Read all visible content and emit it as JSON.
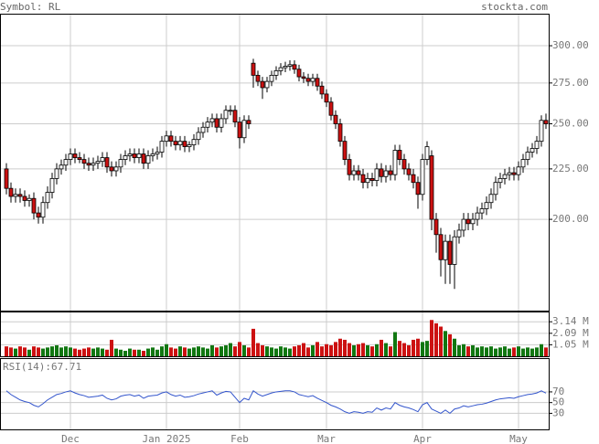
{
  "header": {
    "symbol": "Symbol: RL",
    "site": "stockta.com"
  },
  "chart_data": [
    {
      "type": "candlestick",
      "log": true,
      "grid": true,
      "up_color": "#ffffff",
      "down_color": "#cc1111",
      "categories": [
        null,
        null,
        null,
        null,
        null,
        null,
        null,
        null,
        null,
        null,
        null,
        null,
        null,
        null,
        "Dec",
        null,
        null,
        null,
        null,
        null,
        null,
        null,
        null,
        null,
        null,
        null,
        null,
        null,
        null,
        null,
        null,
        null,
        null,
        null,
        null,
        "Jan 2025",
        null,
        null,
        null,
        null,
        null,
        null,
        null,
        null,
        null,
        null,
        null,
        null,
        null,
        null,
        null,
        "Feb",
        null,
        null,
        null,
        null,
        null,
        null,
        null,
        null,
        null,
        null,
        null,
        null,
        null,
        null,
        null,
        null,
        null,
        null,
        "Mar",
        null,
        null,
        null,
        null,
        null,
        null,
        null,
        null,
        null,
        null,
        null,
        null,
        null,
        null,
        null,
        null,
        null,
        null,
        null,
        null,
        "Apr",
        null,
        null,
        null,
        null,
        null,
        null,
        null,
        null,
        null,
        null,
        null,
        null,
        null,
        null,
        null,
        null,
        null,
        null,
        null,
        null,
        "May",
        null,
        null,
        null,
        null,
        null,
        null
      ],
      "open": [
        225,
        215,
        211,
        212,
        211,
        209,
        210,
        203,
        201,
        208,
        213,
        220,
        225,
        227,
        230,
        233,
        231,
        230,
        228,
        227,
        228,
        229,
        231,
        226,
        224,
        226,
        230,
        232,
        233,
        231,
        233,
        228,
        232,
        233,
        234,
        240,
        243,
        240,
        238,
        240,
        237,
        238,
        241,
        245,
        248,
        251,
        253,
        248,
        253,
        258,
        258,
        251,
        242,
        252,
        288,
        280,
        276,
        272,
        276,
        280,
        283,
        285,
        286,
        287,
        284,
        279,
        278,
        276,
        278,
        273,
        268,
        263,
        255,
        250,
        240,
        230,
        222,
        224,
        222,
        218,
        220,
        219,
        225,
        221,
        224,
        222,
        235,
        230,
        225,
        222,
        218,
        212,
        230,
        232,
        200,
        193,
        182,
        190,
        180,
        192,
        195,
        200,
        198,
        200,
        203,
        205,
        208,
        212,
        218,
        220,
        222,
        223,
        222,
        226,
        230,
        234,
        236,
        240,
        252
      ],
      "high": [
        228,
        218,
        215,
        215,
        214,
        212,
        213,
        206,
        211,
        216,
        223,
        228,
        230,
        233,
        236,
        236,
        234,
        233,
        231,
        231,
        232,
        234,
        234,
        229,
        229,
        233,
        235,
        236,
        236,
        236,
        236,
        235,
        236,
        237,
        243,
        246,
        246,
        243,
        243,
        243,
        240,
        244,
        248,
        251,
        254,
        256,
        256,
        256,
        261,
        261,
        261,
        254,
        255,
        255,
        291,
        283,
        279,
        279,
        283,
        286,
        288,
        289,
        290,
        290,
        287,
        282,
        281,
        281,
        281,
        276,
        271,
        266,
        258,
        253,
        243,
        233,
        227,
        227,
        225,
        223,
        223,
        228,
        228,
        227,
        227,
        238,
        238,
        233,
        228,
        225,
        221,
        233,
        240,
        235,
        203,
        196,
        193,
        193,
        195,
        198,
        203,
        203,
        203,
        206,
        208,
        211,
        215,
        221,
        223,
        225,
        226,
        226,
        229,
        233,
        237,
        239,
        243,
        255,
        256
      ],
      "low": [
        212,
        208,
        208,
        208,
        206,
        206,
        200,
        198,
        198,
        205,
        210,
        217,
        222,
        224,
        227,
        228,
        228,
        225,
        224,
        224,
        225,
        226,
        223,
        221,
        221,
        223,
        227,
        229,
        228,
        228,
        225,
        225,
        229,
        230,
        231,
        237,
        237,
        235,
        235,
        234,
        234,
        235,
        238,
        242,
        245,
        248,
        245,
        245,
        250,
        255,
        248,
        236,
        239,
        247,
        272,
        273,
        265,
        269,
        273,
        277,
        280,
        282,
        283,
        281,
        276,
        275,
        273,
        273,
        270,
        265,
        260,
        252,
        247,
        237,
        227,
        219,
        219,
        219,
        215,
        215,
        216,
        216,
        218,
        218,
        219,
        219,
        227,
        222,
        219,
        215,
        205,
        209,
        227,
        195,
        185,
        175,
        172,
        172,
        170,
        189,
        192,
        195,
        195,
        197,
        200,
        202,
        205,
        209,
        215,
        217,
        219,
        219,
        219,
        223,
        227,
        231,
        233,
        237,
        247
      ],
      "close": [
        215,
        211,
        212,
        211,
        209,
        210,
        203,
        201,
        208,
        213,
        220,
        225,
        227,
        230,
        233,
        231,
        230,
        228,
        227,
        228,
        229,
        231,
        226,
        224,
        226,
        230,
        232,
        233,
        231,
        233,
        228,
        232,
        233,
        234,
        240,
        243,
        240,
        238,
        240,
        237,
        238,
        241,
        245,
        248,
        251,
        253,
        248,
        253,
        258,
        258,
        251,
        242,
        252,
        250,
        280,
        276,
        272,
        276,
        280,
        283,
        285,
        286,
        287,
        284,
        279,
        278,
        276,
        278,
        273,
        268,
        263,
        255,
        250,
        240,
        230,
        222,
        224,
        222,
        218,
        220,
        219,
        225,
        221,
        224,
        222,
        235,
        230,
        225,
        222,
        218,
        212,
        230,
        237,
        200,
        193,
        182,
        190,
        180,
        192,
        195,
        200,
        198,
        200,
        203,
        205,
        208,
        212,
        218,
        220,
        222,
        223,
        222,
        226,
        230,
        234,
        236,
        240,
        252,
        250
      ],
      "ylim": [
        161.6,
        323.3
      ],
      "yticks": [
        {
          "value": 300,
          "label": "300.00"
        },
        {
          "value": 275,
          "label": "275.00"
        },
        {
          "value": 250,
          "label": "250.00"
        },
        {
          "value": 225,
          "label": "225.00"
        },
        {
          "value": 200,
          "label": "200.00"
        }
      ]
    },
    {
      "type": "bar",
      "up_color": "#117711",
      "down_color": "#cc1111",
      "values": [
        0.9,
        0.8,
        0.7,
        0.9,
        0.8,
        0.6,
        0.9,
        0.8,
        0.7,
        0.8,
        0.9,
        1.0,
        0.8,
        0.9,
        0.8,
        0.7,
        0.6,
        0.7,
        0.8,
        0.7,
        0.8,
        0.7,
        0.6,
        1.5,
        0.7,
        0.6,
        0.5,
        0.7,
        0.6,
        0.6,
        0.5,
        0.7,
        0.8,
        0.6,
        0.9,
        1.1,
        0.8,
        0.7,
        0.9,
        0.8,
        0.7,
        0.8,
        0.9,
        0.8,
        0.7,
        1.0,
        0.8,
        0.9,
        1.0,
        1.2,
        0.9,
        1.3,
        1.0,
        0.8,
        2.5,
        1.2,
        1.0,
        0.9,
        0.8,
        0.7,
        0.9,
        0.8,
        0.7,
        0.9,
        1.0,
        1.2,
        0.8,
        1.0,
        1.3,
        0.9,
        1.1,
        1.0,
        1.3,
        1.6,
        1.5,
        1.2,
        1.0,
        1.1,
        1.2,
        1.0,
        0.9,
        1.1,
        1.5,
        1.2,
        0.9,
        2.2,
        1.4,
        1.2,
        1.0,
        1.5,
        1.6,
        1.3,
        1.4,
        3.3,
        3.0,
        2.7,
        2.3,
        2.0,
        1.6,
        1.0,
        1.1,
        0.9,
        1.0,
        0.8,
        0.9,
        0.8,
        0.9,
        0.7,
        0.8,
        0.9,
        0.7,
        0.8,
        0.9,
        0.7,
        0.8,
        0.7,
        0.8,
        1.1,
        0.8
      ],
      "ylim": [
        0,
        4.07
      ],
      "yticks": [
        {
          "value": 3.14,
          "label": "3.14 M"
        },
        {
          "value": 2.09,
          "label": "2.09 M"
        },
        {
          "value": 1.05,
          "label": "1.05 M"
        }
      ]
    },
    {
      "type": "line",
      "label": "RSI(14):",
      "color": "#3355cc",
      "values": [
        72,
        65,
        60,
        55,
        52,
        50,
        45,
        42,
        48,
        55,
        60,
        65,
        67,
        70,
        72,
        68,
        65,
        63,
        60,
        61,
        62,
        64,
        58,
        55,
        57,
        62,
        64,
        65,
        62,
        64,
        58,
        62,
        63,
        64,
        68,
        70,
        65,
        62,
        64,
        60,
        61,
        63,
        66,
        68,
        70,
        72,
        64,
        68,
        71,
        70,
        60,
        50,
        58,
        55,
        72,
        66,
        62,
        65,
        68,
        70,
        71,
        72,
        72,
        70,
        65,
        63,
        61,
        63,
        58,
        54,
        50,
        45,
        42,
        38,
        33,
        30,
        33,
        32,
        30,
        33,
        32,
        40,
        36,
        40,
        38,
        50,
        45,
        42,
        40,
        37,
        33,
        46,
        50,
        38,
        34,
        30,
        36,
        30,
        38,
        40,
        44,
        42,
        44,
        46,
        47,
        49,
        52,
        55,
        57,
        58,
        59,
        58,
        61,
        63,
        65,
        66,
        68,
        72,
        67.71
      ],
      "ylim": [
        0,
        133
      ],
      "yticks": [
        70,
        50,
        30
      ]
    }
  ]
}
